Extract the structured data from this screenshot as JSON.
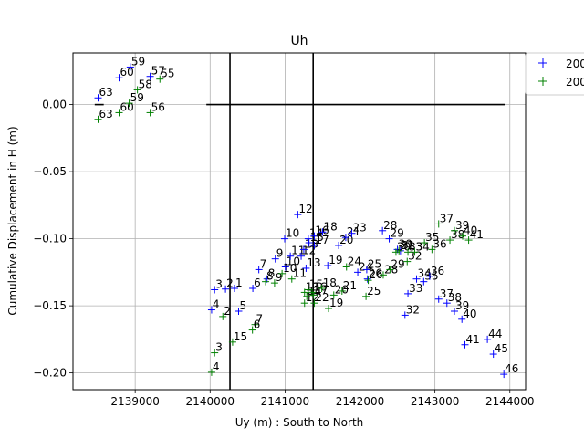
{
  "chart_data": {
    "type": "scatter",
    "title": "Uh",
    "xlabel": "Uy (m) : South to North",
    "ylabel": "Cumulative Displacement in H (m)",
    "xlim": [
      2138170,
      2144210
    ],
    "ylim": [
      -0.2125,
      0.0385
    ],
    "xticks": [
      2139000,
      2140000,
      2141000,
      2142000,
      2143000,
      2144000
    ],
    "xtick_labels": [
      "2139000",
      "2140000",
      "2141000",
      "2142000",
      "2143000",
      "2144000"
    ],
    "yticks": [
      0.0,
      -0.05,
      -0.1,
      -0.15,
      -0.2
    ],
    "ytick_labels": [
      "0.00",
      "−0.05",
      "−0.10",
      "−0.15",
      "−0.20"
    ],
    "grid": true,
    "legend_position": "top-right, outside the axes (clipped)",
    "legend_labels": [
      "200",
      "200"
    ],
    "series": [
      {
        "color": "#0000ff",
        "marker": "+",
        "points": [
          {
            "label": "63",
            "x": 2138505,
            "y": 0.005
          },
          {
            "label": "60",
            "x": 2138785,
            "y": 0.02
          },
          {
            "label": "59",
            "x": 2138935,
            "y": 0.028
          },
          {
            "label": "57",
            "x": 2139200,
            "y": 0.021
          },
          {
            "label": "4",
            "x": 2140020,
            "y": -0.153
          },
          {
            "label": "3",
            "x": 2140060,
            "y": -0.138
          },
          {
            "label": "2",
            "x": 2140205,
            "y": -0.1375
          },
          {
            "label": "1",
            "x": 2140325,
            "y": -0.137
          },
          {
            "label": "5",
            "x": 2140380,
            "y": -0.154
          },
          {
            "label": "6",
            "x": 2140570,
            "y": -0.137
          },
          {
            "label": "7",
            "x": 2140650,
            "y": -0.123
          },
          {
            "label": "8",
            "x": 2140760,
            "y": -0.13
          },
          {
            "label": "9",
            "x": 2140870,
            "y": -0.115
          },
          {
            "label": "10",
            "x": 2140995,
            "y": -0.1
          },
          {
            "label": "10",
            "x": 2141005,
            "y": -0.121
          },
          {
            "label": "11",
            "x": 2141070,
            "y": -0.113
          },
          {
            "label": "12",
            "x": 2141170,
            "y": -0.082
          },
          {
            "label": "12",
            "x": 2141215,
            "y": -0.113
          },
          {
            "label": "13",
            "x": 2141250,
            "y": -0.108
          },
          {
            "label": "13",
            "x": 2141280,
            "y": -0.122
          },
          {
            "label": "14",
            "x": 2141310,
            "y": -0.1
          },
          {
            "label": "15",
            "x": 2141320,
            "y": -0.103
          },
          {
            "label": "16",
            "x": 2141390,
            "y": -0.098
          },
          {
            "label": "17",
            "x": 2141390,
            "y": -0.105
          },
          {
            "label": "18",
            "x": 2141500,
            "y": -0.095
          },
          {
            "label": "19",
            "x": 2141570,
            "y": -0.12
          },
          {
            "label": "20",
            "x": 2141715,
            "y": -0.105
          },
          {
            "label": "21",
            "x": 2141810,
            "y": -0.099
          },
          {
            "label": "23",
            "x": 2141890,
            "y": -0.096
          },
          {
            "label": "24",
            "x": 2141970,
            "y": -0.125
          },
          {
            "label": "25",
            "x": 2142090,
            "y": -0.123
          },
          {
            "label": "26",
            "x": 2142100,
            "y": -0.13
          },
          {
            "label": "28",
            "x": 2142300,
            "y": -0.094
          },
          {
            "label": "29",
            "x": 2142390,
            "y": -0.1
          },
          {
            "label": "30",
            "x": 2142500,
            "y": -0.108
          },
          {
            "label": "31",
            "x": 2142540,
            "y": -0.109
          },
          {
            "label": "33",
            "x": 2142640,
            "y": -0.141
          },
          {
            "label": "32",
            "x": 2142600,
            "y": -0.157
          },
          {
            "label": "34",
            "x": 2142755,
            "y": -0.13
          },
          {
            "label": "35",
            "x": 2142850,
            "y": -0.132
          },
          {
            "label": "36",
            "x": 2142930,
            "y": -0.128
          },
          {
            "label": "37",
            "x": 2143050,
            "y": -0.145
          },
          {
            "label": "38",
            "x": 2143160,
            "y": -0.148
          },
          {
            "label": "39",
            "x": 2143260,
            "y": -0.154
          },
          {
            "label": "40",
            "x": 2143360,
            "y": -0.16
          },
          {
            "label": "41",
            "x": 2143400,
            "y": -0.179
          },
          {
            "label": "44",
            "x": 2143700,
            "y": -0.175
          },
          {
            "label": "45",
            "x": 2143780,
            "y": -0.186
          },
          {
            "label": "46",
            "x": 2143920,
            "y": -0.201
          }
        ]
      },
      {
        "color": "#008000",
        "marker": "+",
        "points": [
          {
            "label": "63",
            "x": 2138505,
            "y": -0.011
          },
          {
            "label": "60",
            "x": 2138785,
            "y": -0.006
          },
          {
            "label": "59",
            "x": 2138920,
            "y": 0.001
          },
          {
            "label": "58",
            "x": 2139030,
            "y": 0.011
          },
          {
            "label": "56",
            "x": 2139200,
            "y": -0.006
          },
          {
            "label": "55",
            "x": 2139330,
            "y": 0.019
          },
          {
            "label": "4",
            "x": 2140020,
            "y": -0.1995
          },
          {
            "label": "3",
            "x": 2140060,
            "y": -0.185
          },
          {
            "label": "2",
            "x": 2140170,
            "y": -0.158
          },
          {
            "label": "15",
            "x": 2140300,
            "y": -0.177
          },
          {
            "label": "7",
            "x": 2140600,
            "y": -0.164
          },
          {
            "label": "6",
            "x": 2140565,
            "y": -0.168
          },
          {
            "label": "8",
            "x": 2140740,
            "y": -0.132
          },
          {
            "label": "9",
            "x": 2140860,
            "y": -0.133
          },
          {
            "label": "10",
            "x": 2140960,
            "y": -0.126
          },
          {
            "label": "11",
            "x": 2141090,
            "y": -0.13
          },
          {
            "label": "12",
            "x": 2141260,
            "y": -0.148
          },
          {
            "label": "13",
            "x": 2141260,
            "y": -0.14
          },
          {
            "label": "14",
            "x": 2141290,
            "y": -0.143
          },
          {
            "label": "15",
            "x": 2141310,
            "y": -0.138
          },
          {
            "label": "16",
            "x": 2141360,
            "y": -0.14
          },
          {
            "label": "17",
            "x": 2141380,
            "y": -0.142
          },
          {
            "label": "18",
            "x": 2141490,
            "y": -0.137
          },
          {
            "label": "19",
            "x": 2141580,
            "y": -0.152
          },
          {
            "label": "20",
            "x": 2141650,
            "y": -0.142
          },
          {
            "label": "21",
            "x": 2141760,
            "y": -0.139
          },
          {
            "label": "22",
            "x": 2141390,
            "y": -0.148
          },
          {
            "label": "25",
            "x": 2142080,
            "y": -0.143
          },
          {
            "label": "26",
            "x": 2142110,
            "y": -0.131
          },
          {
            "label": "24",
            "x": 2141820,
            "y": -0.121
          },
          {
            "label": "28",
            "x": 2142310,
            "y": -0.127
          },
          {
            "label": "29",
            "x": 2142400,
            "y": -0.123
          },
          {
            "label": "30",
            "x": 2142480,
            "y": -0.11
          },
          {
            "label": "31",
            "x": 2142520,
            "y": -0.109
          },
          {
            "label": "32",
            "x": 2142630,
            "y": -0.117
          },
          {
            "label": "33",
            "x": 2142640,
            "y": -0.11
          },
          {
            "label": "34",
            "x": 2142730,
            "y": -0.11
          },
          {
            "label": "35",
            "x": 2142860,
            "y": -0.103
          },
          {
            "label": "36",
            "x": 2142960,
            "y": -0.108
          },
          {
            "label": "37",
            "x": 2143050,
            "y": -0.089
          },
          {
            "label": "38",
            "x": 2143200,
            "y": -0.101
          },
          {
            "label": "39",
            "x": 2143260,
            "y": -0.094
          },
          {
            "label": "40",
            "x": 2143370,
            "y": -0.098
          },
          {
            "label": "41",
            "x": 2143450,
            "y": -0.101
          }
        ]
      }
    ],
    "reference_lines": {
      "vertical_x": [
        2140265,
        2141375
      ],
      "horizontal": [
        {
          "y": 0.0,
          "x_from": 2138460,
          "x_to": 2138580
        },
        {
          "y": 0.0,
          "x_from": 2139950,
          "x_to": 2143930
        }
      ],
      "color": "#000000"
    }
  }
}
